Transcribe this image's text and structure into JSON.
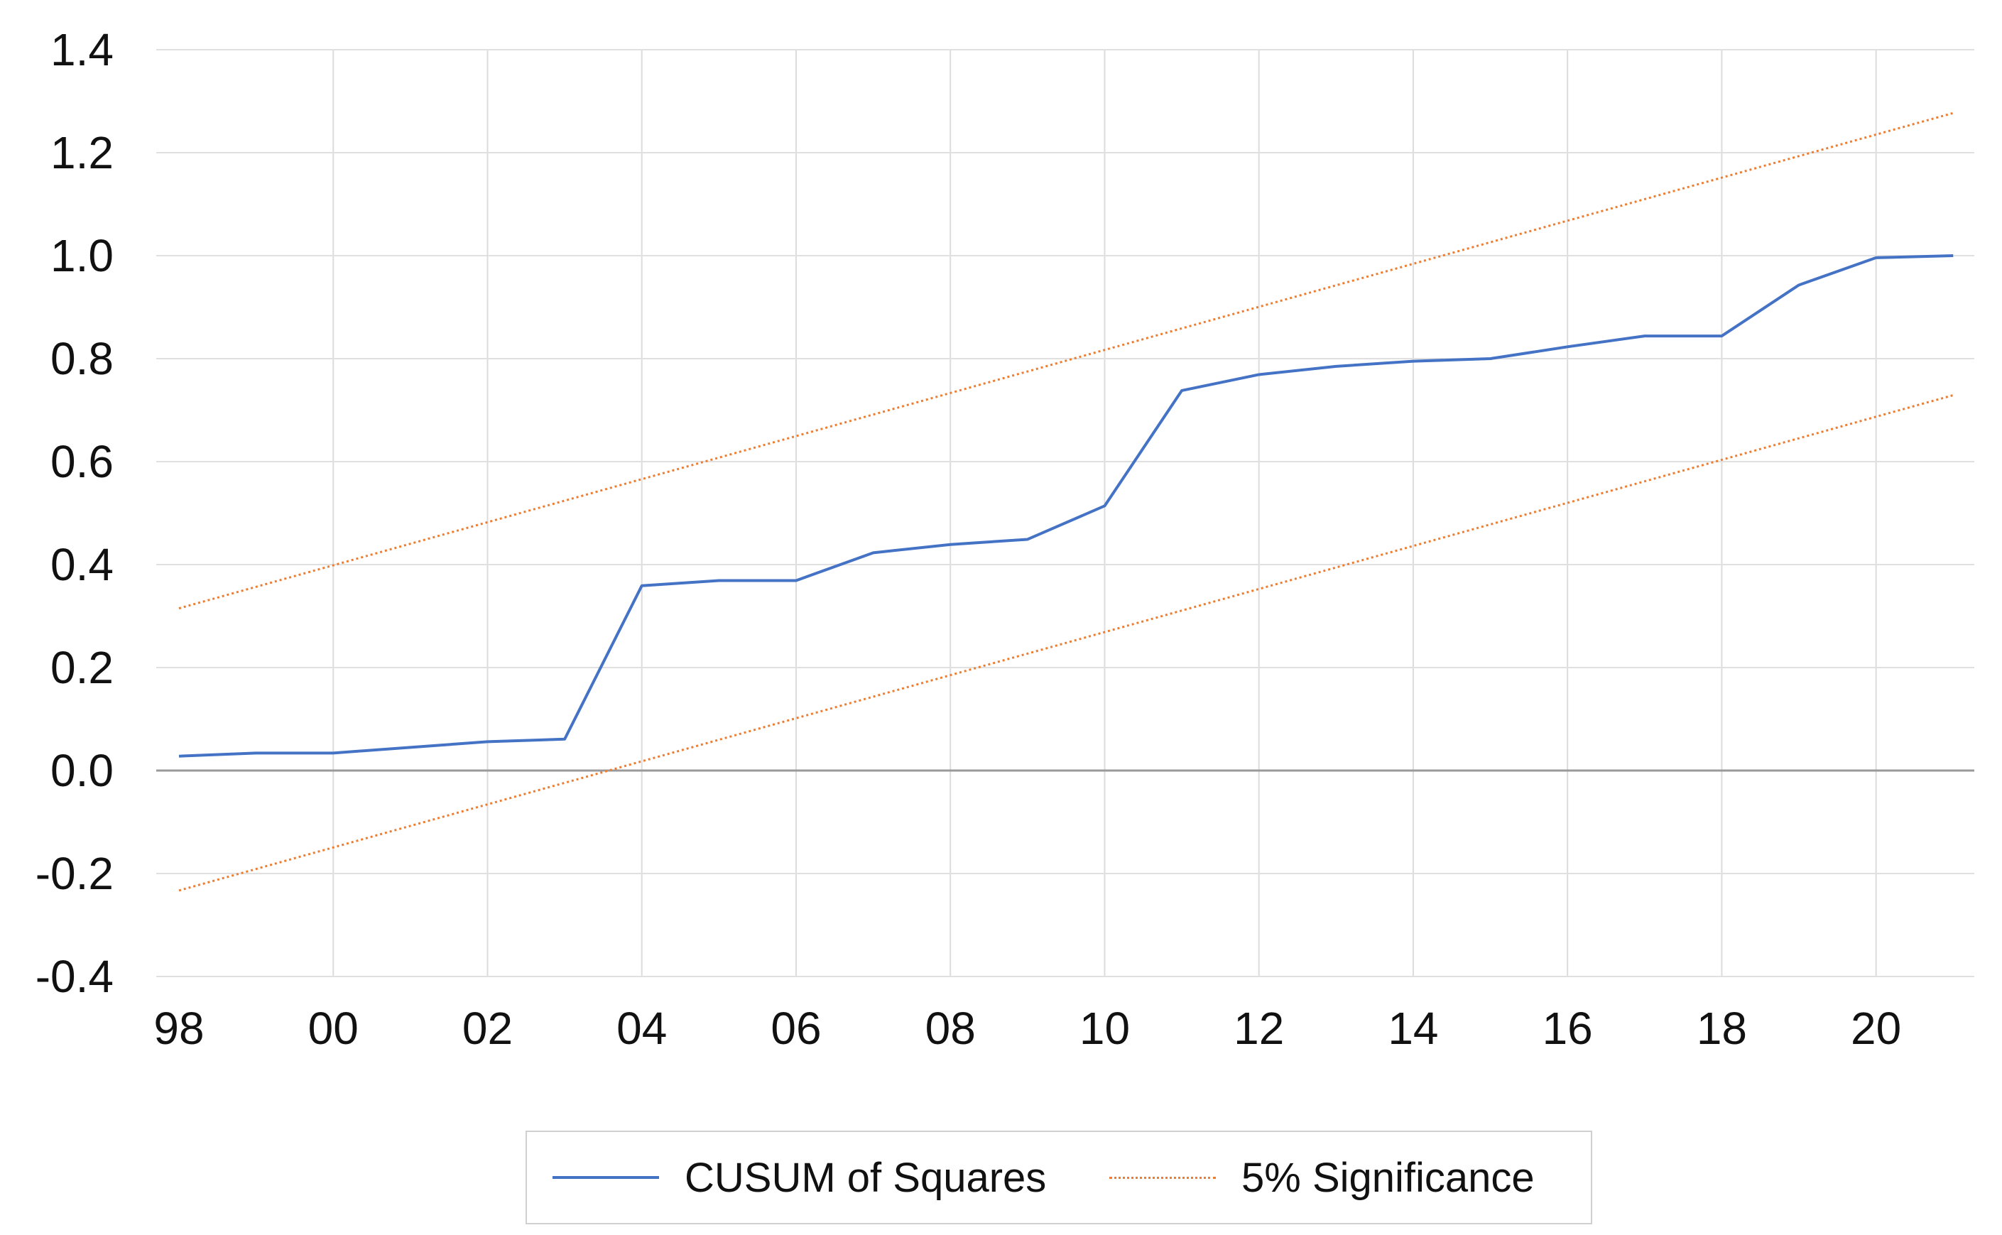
{
  "chart_data": {
    "type": "line",
    "xlim": [
      1998,
      2021.2
    ],
    "ylim": [
      -0.4,
      1.4
    ],
    "x_ticks": [
      1998,
      2000,
      2002,
      2004,
      2006,
      2008,
      2010,
      2012,
      2014,
      2016,
      2018,
      2020
    ],
    "x_tick_labels": [
      "98",
      "00",
      "02",
      "04",
      "06",
      "08",
      "10",
      "12",
      "14",
      "16",
      "18",
      "20"
    ],
    "y_ticks": [
      -0.4,
      -0.2,
      0.0,
      0.2,
      0.4,
      0.6,
      0.8,
      1.0,
      1.2,
      1.4
    ],
    "y_tick_labels": [
      "-0.4",
      "-0.2",
      "0.0",
      "0.2",
      "0.4",
      "0.6",
      "0.8",
      "1.0",
      "1.2",
      "1.4"
    ],
    "grid": true,
    "legend_position": "bottom-center",
    "series": [
      {
        "name": "CUSUM of Squares",
        "color": "#4472c4",
        "style": "solid",
        "x": [
          1998,
          1999,
          2000,
          2001,
          2002,
          2003,
          2004,
          2005,
          2006,
          2007,
          2008,
          2009,
          2010,
          2011,
          2012,
          2013,
          2014,
          2015,
          2016,
          2017,
          2018,
          2019,
          2020,
          2021
        ],
        "y": [
          0.028,
          0.034,
          0.034,
          0.045,
          0.056,
          0.061,
          0.359,
          0.369,
          0.369,
          0.423,
          0.439,
          0.449,
          0.514,
          0.738,
          0.769,
          0.785,
          0.795,
          0.8,
          0.823,
          0.844,
          0.844,
          0.943,
          0.996,
          1.0
        ]
      },
      {
        "name": "5% Significance",
        "color": "#ed7d31",
        "style": "dotted",
        "x": [
          1998,
          2021
        ],
        "y": [
          0.315,
          1.277
        ]
      },
      {
        "name": "",
        "color": "#ed7d31",
        "style": "dotted",
        "x": [
          1998,
          2021
        ],
        "y": [
          -0.233,
          0.729
        ]
      }
    ]
  },
  "legend": {
    "items": [
      "CUSUM of Squares",
      "5% Significance"
    ]
  }
}
